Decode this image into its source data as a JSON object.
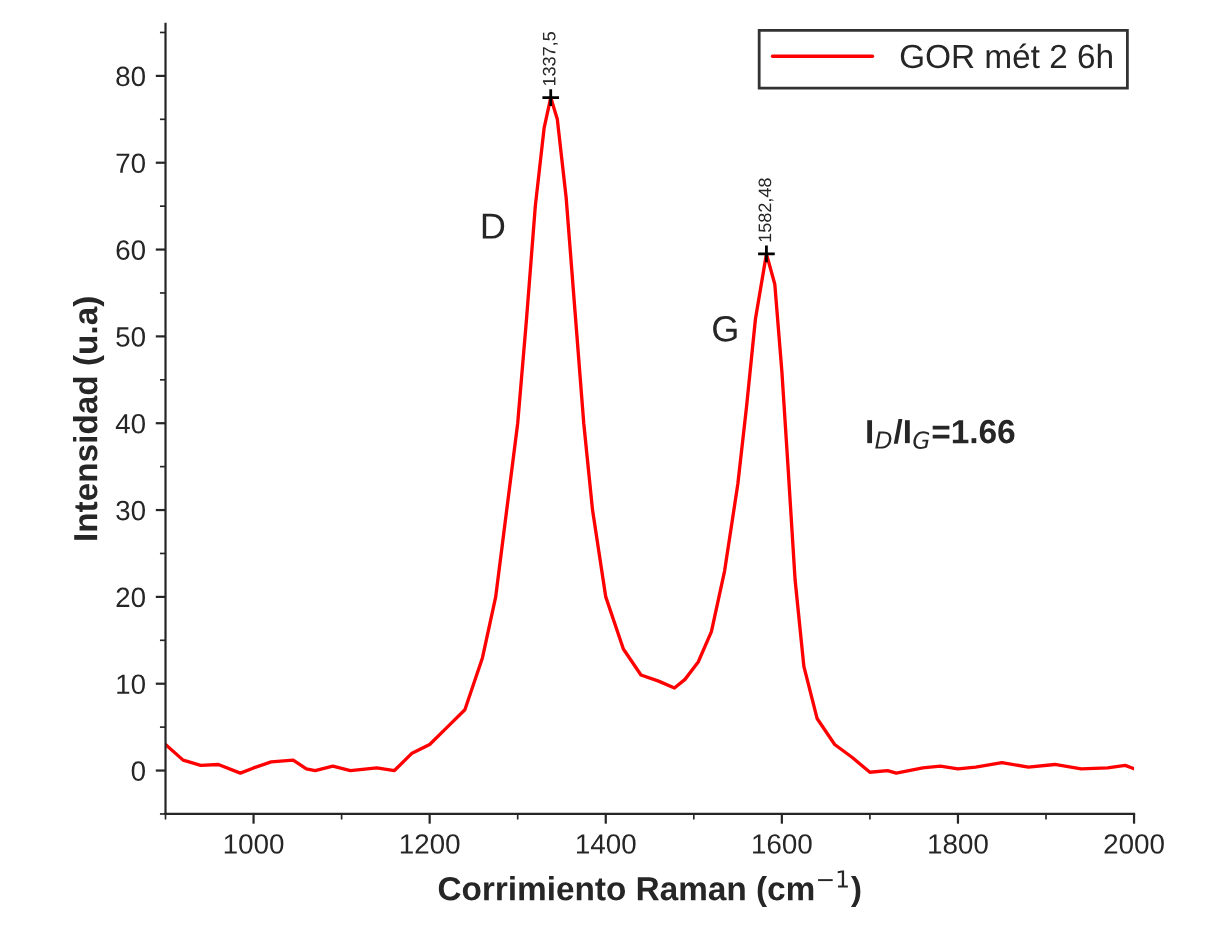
{
  "chart_data": {
    "type": "line",
    "xlabel": "Corrimiento Raman (cm$^{−1}$)",
    "ylabel": "Intensidad (u.a)",
    "x": [
      900,
      920,
      940,
      960,
      985,
      1000,
      1020,
      1045,
      1060,
      1070,
      1090,
      1110,
      1140,
      1160,
      1180,
      1200,
      1220,
      1240,
      1260,
      1275,
      1290,
      1300,
      1310,
      1320,
      1330,
      1337.5,
      1345,
      1355,
      1365,
      1375,
      1385,
      1400,
      1420,
      1440,
      1460,
      1478,
      1490,
      1505,
      1520,
      1535,
      1550,
      1560,
      1570,
      1582.48,
      1592,
      1600,
      1607,
      1615,
      1625,
      1640,
      1660,
      1680,
      1700,
      1720,
      1730,
      1760,
      1780,
      1800,
      1820,
      1850,
      1880,
      1910,
      1940,
      1970,
      1990,
      2000
    ],
    "series": [
      {
        "name": "GOR mét 2 6h",
        "color": "#ff0000",
        "values": [
          3,
          1.2,
          0.6,
          0.7,
          -0.3,
          0.3,
          1,
          1.2,
          0.2,
          0,
          0.5,
          0,
          0.3,
          0,
          2,
          3,
          5,
          7,
          13,
          20,
          32,
          40,
          52,
          65,
          74,
          77.5,
          75,
          66,
          53,
          40,
          30,
          20,
          14,
          11,
          10.3,
          9.5,
          10.5,
          12.5,
          16,
          23,
          33,
          42,
          52,
          59.5,
          56,
          46,
          35,
          22,
          12,
          6,
          3,
          1.5,
          -0.2,
          0,
          -0.3,
          0.3,
          0.5,
          0.2,
          0.4,
          0.9,
          0.4,
          0.7,
          0.2,
          0.3,
          0.6,
          0.2
        ]
      }
    ],
    "xlim": [
      900,
      2000
    ],
    "ylim": [
      -5,
      86
    ],
    "xticks": [
      1000,
      1200,
      1400,
      1600,
      1800,
      2000
    ],
    "yticks": [
      0,
      10,
      20,
      30,
      40,
      50,
      60,
      70,
      80
    ],
    "annotations": [
      {
        "text": "1337,5",
        "x": 1337.5,
        "y": 77.5
      },
      {
        "text": "1582,48",
        "x": 1582.48,
        "y": 59.5
      },
      "D",
      "G",
      "I$_{D}$/I$_{G}$=1.66"
    ],
    "legend": "top right",
    "grid": false,
    "marker": "none",
    "line_style": "solid"
  }
}
